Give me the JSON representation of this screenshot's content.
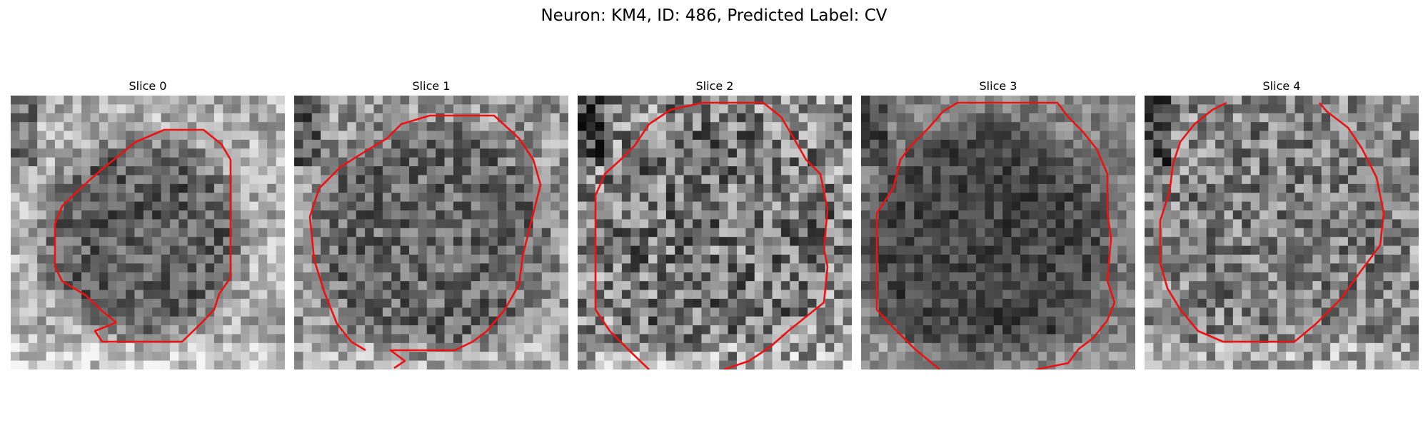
{
  "figure": {
    "title": "Neuron: KM4, ID: 486, Predicted Label: CV"
  },
  "colors": {
    "contour": "#ee1111"
  },
  "panels": [
    {
      "title": "Slice 0"
    },
    {
      "title": "Slice 1"
    },
    {
      "title": "Slice 2"
    },
    {
      "title": "Slice 3"
    },
    {
      "title": "Slice 4"
    }
  ]
}
